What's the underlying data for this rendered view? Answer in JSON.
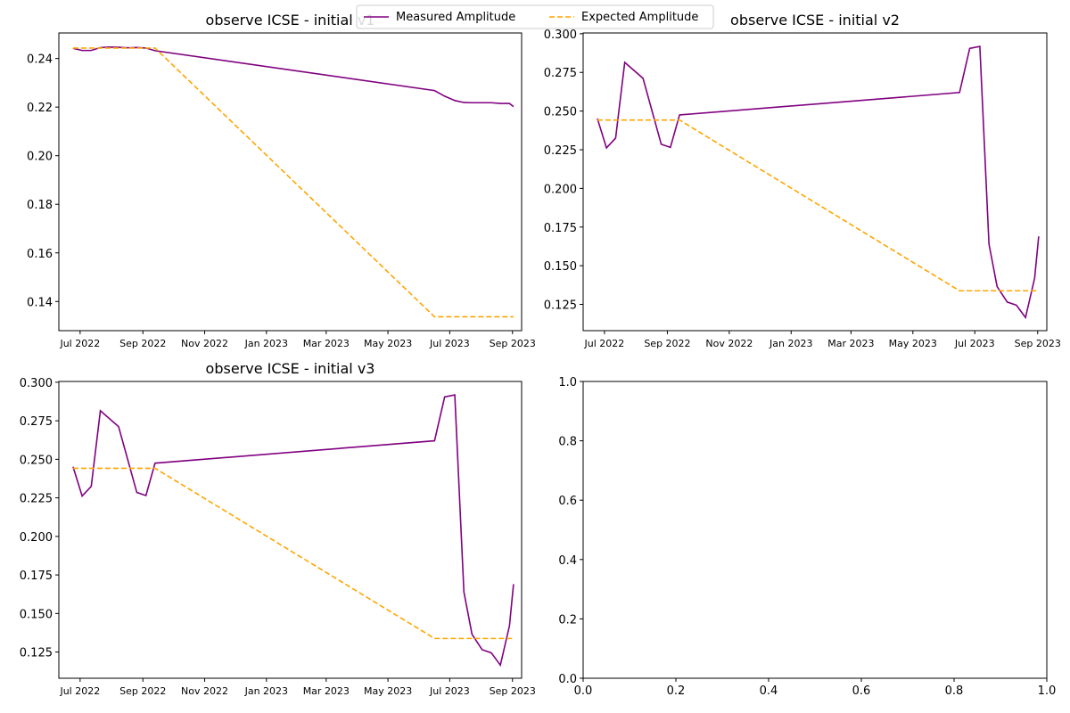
{
  "legend": {
    "entries": [
      {
        "label": "Measured Amplitude",
        "color": "#800080",
        "style": "solid"
      },
      {
        "label": "Expected Amplitude",
        "color": "#FFA500",
        "style": "dashed"
      }
    ]
  },
  "chart_data": [
    {
      "type": "line",
      "title": "observe ICSE - initial v1",
      "xlabel": "",
      "ylabel": "",
      "x_axis": "date",
      "xlim": [
        "2022-06-10",
        "2023-09-10"
      ],
      "ylim": [
        0.128,
        0.2505
      ],
      "x_ticks": [
        {
          "label": "Jul 2022",
          "date": "2022-07-01"
        },
        {
          "label": "Sep 2022",
          "date": "2022-09-01"
        },
        {
          "label": "Nov 2022",
          "date": "2022-11-01"
        },
        {
          "label": "Jan 2023",
          "date": "2023-01-01"
        },
        {
          "label": "Mar 2023",
          "date": "2023-03-01"
        },
        {
          "label": "May 2023",
          "date": "2023-05-01"
        },
        {
          "label": "Jul 2023",
          "date": "2023-07-01"
        },
        {
          "label": "Sep 2023",
          "date": "2023-09-01"
        }
      ],
      "y_ticks": [
        "0.14",
        "0.16",
        "0.18",
        "0.20",
        "0.22",
        "0.24"
      ],
      "y_tick_values": [
        0.14,
        0.16,
        0.18,
        0.2,
        0.22,
        0.24
      ],
      "series": [
        {
          "name": "Measured Amplitude",
          "color": "#800080",
          "style": "solid",
          "x": [
            "2022-06-24",
            "2022-07-03",
            "2022-07-12",
            "2022-07-21",
            "2022-07-30",
            "2022-08-08",
            "2022-08-17",
            "2022-08-26",
            "2022-09-04",
            "2022-09-13",
            "2023-06-16",
            "2023-06-26",
            "2023-07-06",
            "2023-07-15",
            "2023-07-23",
            "2023-08-02",
            "2023-08-11",
            "2023-08-20",
            "2023-08-29",
            "2023-09-02"
          ],
          "y": [
            0.2442,
            0.2433,
            0.2433,
            0.2445,
            0.2447,
            0.2446,
            0.2444,
            0.2445,
            0.2443,
            0.2432,
            0.2268,
            0.2245,
            0.2227,
            0.2219,
            0.2218,
            0.2218,
            0.2218,
            0.2215,
            0.2215,
            0.2202
          ]
        },
        {
          "name": "Expected Amplitude",
          "color": "#FFA500",
          "style": "dashed",
          "x": [
            "2022-06-24",
            "2022-09-13",
            "2023-06-16",
            "2023-09-02"
          ],
          "y": [
            0.2443,
            0.2443,
            0.1337,
            0.1337
          ]
        }
      ]
    },
    {
      "type": "line",
      "title": "observe ICSE - initial v2",
      "xlabel": "",
      "ylabel": "",
      "x_axis": "date",
      "xlim": [
        "2022-06-10",
        "2023-09-10"
      ],
      "ylim": [
        0.108,
        0.3005
      ],
      "x_ticks": [
        {
          "label": "Jul 2022",
          "date": "2022-07-01"
        },
        {
          "label": "Sep 2022",
          "date": "2022-09-01"
        },
        {
          "label": "Nov 2022",
          "date": "2022-11-01"
        },
        {
          "label": "Jan 2023",
          "date": "2023-01-01"
        },
        {
          "label": "Mar 2023",
          "date": "2023-03-01"
        },
        {
          "label": "May 2023",
          "date": "2023-05-01"
        },
        {
          "label": "Jul 2023",
          "date": "2023-07-01"
        },
        {
          "label": "Sep 2023",
          "date": "2023-09-01"
        }
      ],
      "y_ticks": [
        "0.125",
        "0.150",
        "0.175",
        "0.200",
        "0.225",
        "0.250",
        "0.275",
        "0.300"
      ],
      "y_tick_values": [
        0.125,
        0.15,
        0.175,
        0.2,
        0.225,
        0.25,
        0.275,
        0.3
      ],
      "series": [
        {
          "name": "Measured Amplitude",
          "color": "#800080",
          "style": "solid",
          "x": [
            "2022-06-24",
            "2022-07-03",
            "2022-07-12",
            "2022-07-21",
            "2022-08-08",
            "2022-08-26",
            "2022-09-04",
            "2022-09-13",
            "2023-06-16",
            "2023-06-26",
            "2023-07-06",
            "2023-07-15",
            "2023-07-23",
            "2023-08-02",
            "2023-08-11",
            "2023-08-20",
            "2023-08-29",
            "2023-09-02"
          ],
          "y": [
            0.2452,
            0.2262,
            0.2325,
            0.2815,
            0.2712,
            0.2285,
            0.2265,
            0.2475,
            0.262,
            0.2905,
            0.2918,
            0.164,
            0.1365,
            0.1265,
            0.1245,
            0.1165,
            0.142,
            0.169
          ]
        },
        {
          "name": "Expected Amplitude",
          "color": "#FFA500",
          "style": "dashed",
          "x": [
            "2022-06-24",
            "2022-09-13",
            "2023-06-16",
            "2023-09-02"
          ],
          "y": [
            0.2442,
            0.2442,
            0.1338,
            0.1338
          ]
        }
      ]
    },
    {
      "type": "line",
      "title": "observe ICSE - initial v3",
      "xlabel": "",
      "ylabel": "",
      "x_axis": "date",
      "xlim": [
        "2022-06-10",
        "2023-09-10"
      ],
      "ylim": [
        0.108,
        0.3005
      ],
      "x_ticks": [
        {
          "label": "Jul 2022",
          "date": "2022-07-01"
        },
        {
          "label": "Sep 2022",
          "date": "2022-09-01"
        },
        {
          "label": "Nov 2022",
          "date": "2022-11-01"
        },
        {
          "label": "Jan 2023",
          "date": "2023-01-01"
        },
        {
          "label": "Mar 2023",
          "date": "2023-03-01"
        },
        {
          "label": "May 2023",
          "date": "2023-05-01"
        },
        {
          "label": "Jul 2023",
          "date": "2023-07-01"
        },
        {
          "label": "Sep 2023",
          "date": "2023-09-01"
        }
      ],
      "y_ticks": [
        "0.125",
        "0.150",
        "0.175",
        "0.200",
        "0.225",
        "0.250",
        "0.275",
        "0.300"
      ],
      "y_tick_values": [
        0.125,
        0.15,
        0.175,
        0.2,
        0.225,
        0.25,
        0.275,
        0.3
      ],
      "series": [
        {
          "name": "Measured Amplitude",
          "color": "#800080",
          "style": "solid",
          "x": [
            "2022-06-24",
            "2022-07-03",
            "2022-07-12",
            "2022-07-21",
            "2022-08-08",
            "2022-08-26",
            "2022-09-04",
            "2022-09-13",
            "2023-06-16",
            "2023-06-26",
            "2023-07-06",
            "2023-07-15",
            "2023-07-23",
            "2023-08-02",
            "2023-08-11",
            "2023-08-20",
            "2023-08-29",
            "2023-09-02"
          ],
          "y": [
            0.2452,
            0.2262,
            0.2325,
            0.2815,
            0.2712,
            0.2285,
            0.2265,
            0.2475,
            0.262,
            0.2905,
            0.2918,
            0.164,
            0.1365,
            0.1265,
            0.1245,
            0.1165,
            0.142,
            0.169
          ]
        },
        {
          "name": "Expected Amplitude",
          "color": "#FFA500",
          "style": "dashed",
          "x": [
            "2022-06-24",
            "2022-09-13",
            "2023-06-16",
            "2023-09-02"
          ],
          "y": [
            0.2442,
            0.2442,
            0.1338,
            0.1338
          ]
        }
      ]
    },
    {
      "type": "line",
      "title": "",
      "xlabel": "",
      "ylabel": "",
      "xlim": [
        0,
        1
      ],
      "ylim": [
        0,
        1
      ],
      "x_ticks": [
        "0.0",
        "0.2",
        "0.4",
        "0.6",
        "0.8",
        "1.0"
      ],
      "x_tick_values": [
        0,
        0.2,
        0.4,
        0.6,
        0.8,
        1.0
      ],
      "y_ticks": [
        "0.0",
        "0.2",
        "0.4",
        "0.6",
        "0.8",
        "1.0"
      ],
      "y_tick_values": [
        0,
        0.2,
        0.4,
        0.6,
        0.8,
        1.0
      ],
      "series": []
    }
  ]
}
